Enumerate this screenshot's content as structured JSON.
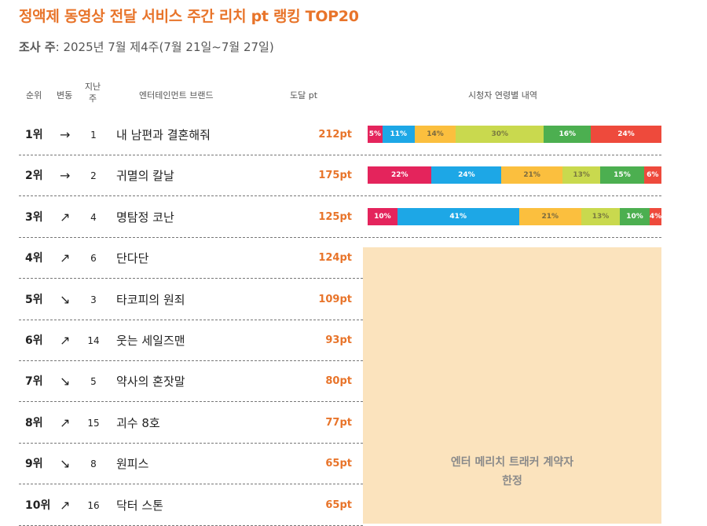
{
  "title": "정액제 동영상 전달 서비스 주간 리치 pt 랭킹 TOP20",
  "subtitle": {
    "label": "조사 주",
    "value": ": 2025년 7월 제4주(7월 21일~7월 27일)"
  },
  "headers": {
    "rank": "순위",
    "change": "변동",
    "last_week_1": "지난",
    "last_week_2": "주",
    "brand": "엔터테인먼트 브랜드",
    "pt": "도달 pt",
    "age": "시청자 연령별 내역"
  },
  "restricted_text": {
    "line1": "엔터 메리치 트래커 계약자",
    "line2": "한정"
  },
  "colors": {
    "accent": "#e8742a",
    "segments": [
      "#e4245c",
      "#1da7e6",
      "#fbbf3e",
      "#c9d94e",
      "#4caf50",
      "#ee4a3c"
    ],
    "segment_text": [
      "#ffffff",
      "#ffffff",
      "#7a6a40",
      "#7a7a40",
      "#ffffff",
      "#ffffff"
    ],
    "restricted_bg": "#fbe3bd"
  },
  "chart_data": {
    "type": "table",
    "columns": [
      "순위",
      "변동",
      "지난 주",
      "엔터테인먼트 브랜드",
      "도달 pt",
      "시청자 연령별 내역"
    ],
    "rows": [
      {
        "rank": "1위",
        "arrow": "→",
        "prev": "1",
        "brand": "내 남편과 결혼해줘",
        "pt": "212pt",
        "age": [
          5,
          11,
          14,
          30,
          16,
          24
        ]
      },
      {
        "rank": "2위",
        "arrow": "→",
        "prev": "2",
        "brand": "귀멸의 칼날",
        "pt": "175pt",
        "age": [
          22,
          24,
          21,
          13,
          15,
          6
        ]
      },
      {
        "rank": "3위",
        "arrow": "↗",
        "prev": "4",
        "brand": "명탐정 코난",
        "pt": "125pt",
        "age": [
          10,
          41,
          21,
          13,
          10,
          4
        ]
      },
      {
        "rank": "4위",
        "arrow": "↗",
        "prev": "6",
        "brand": "단다단",
        "pt": "124pt",
        "age": null
      },
      {
        "rank": "5위",
        "arrow": "↘",
        "prev": "3",
        "brand": "타코피의 원죄",
        "pt": "109pt",
        "age": null
      },
      {
        "rank": "6위",
        "arrow": "↗",
        "prev": "14",
        "brand": "웃는 세일즈맨",
        "pt": "93pt",
        "age": null
      },
      {
        "rank": "7위",
        "arrow": "↘",
        "prev": "5",
        "brand": "약사의 혼잣말",
        "pt": "80pt",
        "age": null
      },
      {
        "rank": "8위",
        "arrow": "↗",
        "prev": "15",
        "brand": "괴수 8호",
        "pt": "77pt",
        "age": null
      },
      {
        "rank": "9위",
        "arrow": "↘",
        "prev": "8",
        "brand": "원피스",
        "pt": "65pt",
        "age": null
      },
      {
        "rank": "10위",
        "arrow": "↗",
        "prev": "16",
        "brand": "닥터 스톤",
        "pt": "65pt",
        "age": null
      }
    ]
  }
}
